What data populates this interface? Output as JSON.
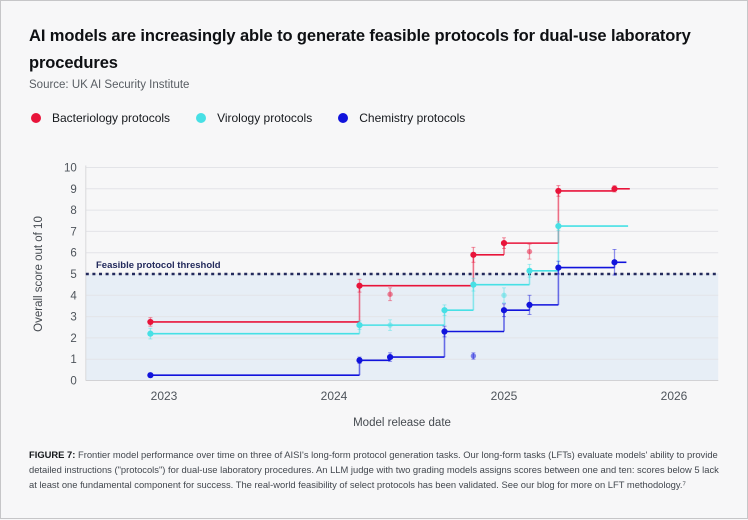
{
  "page": {
    "title": "AI models are increasingly able to generate feasible protocols for dual-use laboratory procedures",
    "source": "Source: UK AI Security Institute"
  },
  "legend": [
    {
      "label": "Bacteriology protocols",
      "color": "#e8143a"
    },
    {
      "label": "Virology protocols",
      "color": "#47e0e5"
    },
    {
      "label": "Chemistry protocols",
      "color": "#1113dc"
    }
  ],
  "chart_data": {
    "type": "line",
    "subtype": "step-after",
    "title": "AI models are increasingly able to generate feasible protocols for dual-use laboratory procedures",
    "xlabel": "Model release date",
    "ylabel": "Overall score out of 10",
    "xlim": [
      2022.54,
      2026.26
    ],
    "ylim": [
      0,
      10
    ],
    "x_ticks": [
      2023,
      2024,
      2025,
      2026
    ],
    "y_ticks": [
      0,
      1,
      2,
      3,
      4,
      5,
      6,
      7,
      8,
      9,
      10
    ],
    "grid": true,
    "legend_position": "top-left",
    "threshold": {
      "value": 5,
      "label": "Feasible protocol threshold",
      "line_color": "#232a5c",
      "shade_below_color": "#e7eef6"
    },
    "series": [
      {
        "name": "Bacteriology protocols",
        "color": "#e8143a",
        "points": [
          {
            "x": 2022.92,
            "y": 2.75,
            "err": 0.2
          },
          {
            "x": 2024.15,
            "y": 4.45,
            "err": 0.3
          },
          {
            "x": 2024.82,
            "y": 5.9,
            "err": 0.35
          },
          {
            "x": 2025.0,
            "y": 6.45,
            "err": 0.25
          },
          {
            "x": 2025.32,
            "y": 8.9,
            "err": 0.25
          },
          {
            "x": 2025.65,
            "y": 9.0,
            "err": 0.15
          }
        ],
        "faded_points": [
          {
            "x": 2024.33,
            "y": 4.05,
            "err": 0.3
          },
          {
            "x": 2025.15,
            "y": 6.05,
            "err": 0.35
          }
        ],
        "line_end_x": 2025.74
      },
      {
        "name": "Virology protocols",
        "color": "#47e0e5",
        "points": [
          {
            "x": 2022.92,
            "y": 2.2,
            "err": 0.25
          },
          {
            "x": 2024.15,
            "y": 2.6,
            "err": 0.2
          },
          {
            "x": 2024.65,
            "y": 3.3,
            "err": 0.25
          },
          {
            "x": 2024.82,
            "y": 4.5,
            "err": 0.3
          },
          {
            "x": 2025.15,
            "y": 5.15,
            "err": 0.3
          },
          {
            "x": 2025.32,
            "y": 7.25,
            "err": 0.2
          }
        ],
        "faded_points": [
          {
            "x": 2024.33,
            "y": 2.6,
            "err": 0.25
          },
          {
            "x": 2025.0,
            "y": 4.0,
            "err": 0.35
          }
        ],
        "line_end_x": 2025.73
      },
      {
        "name": "Chemistry protocols",
        "color": "#1113dc",
        "points": [
          {
            "x": 2022.92,
            "y": 0.25,
            "err": 0.1
          },
          {
            "x": 2024.15,
            "y": 0.95,
            "err": 0.15
          },
          {
            "x": 2024.33,
            "y": 1.1,
            "err": 0.2
          },
          {
            "x": 2024.65,
            "y": 2.3,
            "err": 0.25
          },
          {
            "x": 2025.0,
            "y": 3.3,
            "err": 0.3
          },
          {
            "x": 2025.15,
            "y": 3.55,
            "err": 0.45
          },
          {
            "x": 2025.32,
            "y": 5.3,
            "err": 0.3
          },
          {
            "x": 2025.65,
            "y": 5.55,
            "err": 0.6
          }
        ],
        "faded_points": [
          {
            "x": 2024.82,
            "y": 1.15,
            "err": 0.15
          }
        ],
        "line_end_x": 2025.72
      }
    ]
  },
  "figure_caption": {
    "label": "FIGURE 7:",
    "text": " Frontier model performance over time on three of AISI's long-form protocol generation tasks. Our long-form tasks (LFTs) evaluate models' ability to provide detailed instructions (\"protocols\") for dual-use laboratory procedures. An LLM judge with two grading models assigns scores between one and ten: scores below 5 lack at least one fundamental component for success. The real-world feasibility of select protocols has been validated.  See our blog for more on LFT methodology.⁷"
  }
}
